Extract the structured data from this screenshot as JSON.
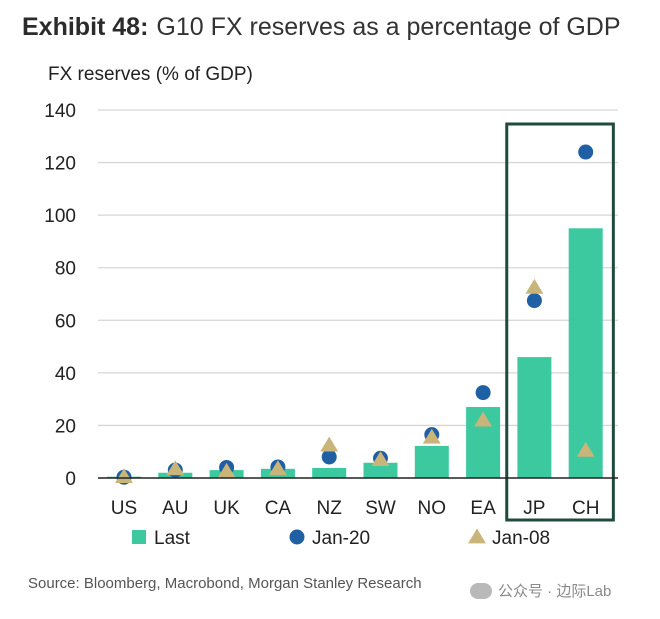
{
  "header": {
    "exhibit": "Exhibit 48:",
    "title": "G10 FX reserves as a percentage of GDP"
  },
  "chart_data": {
    "type": "bar",
    "ylabel": "FX reserves (% of GDP)",
    "categories": [
      "US",
      "AU",
      "UK",
      "CA",
      "NZ",
      "SW",
      "NO",
      "EA",
      "JP",
      "CH"
    ],
    "ylim": [
      0,
      140
    ],
    "yticks": [
      0,
      20,
      40,
      60,
      80,
      100,
      120,
      140
    ],
    "grid": true,
    "highlight": [
      "JP",
      "CH"
    ],
    "legend_position": "bottom",
    "series": [
      {
        "name": "Last",
        "kind": "bar",
        "color": "#3cc9a0",
        "values": [
          0.5,
          2,
          3,
          3.5,
          3.8,
          5.8,
          12.2,
          27,
          46,
          95
        ]
      },
      {
        "name": "Jan-20",
        "kind": "marker-circle",
        "color": "#1f5fa3",
        "values": [
          0.3,
          3,
          4,
          4.2,
          8,
          7.5,
          16.5,
          32.5,
          67.5,
          124
        ]
      },
      {
        "name": "Jan-08",
        "kind": "marker-triangle",
        "color": "#c9b47a",
        "values": [
          0.5,
          3.5,
          2.5,
          3.5,
          12.5,
          7,
          15.5,
          22,
          72.5,
          10.5
        ]
      }
    ],
    "colors": {
      "grid": "#d6d6d6",
      "axis": "#222222",
      "highlight_box": "#1e4b3e"
    }
  },
  "source": "Source: Bloomberg, Macrobond, Morgan Stanley Research",
  "watermark": "公众号 · 边际Lab"
}
